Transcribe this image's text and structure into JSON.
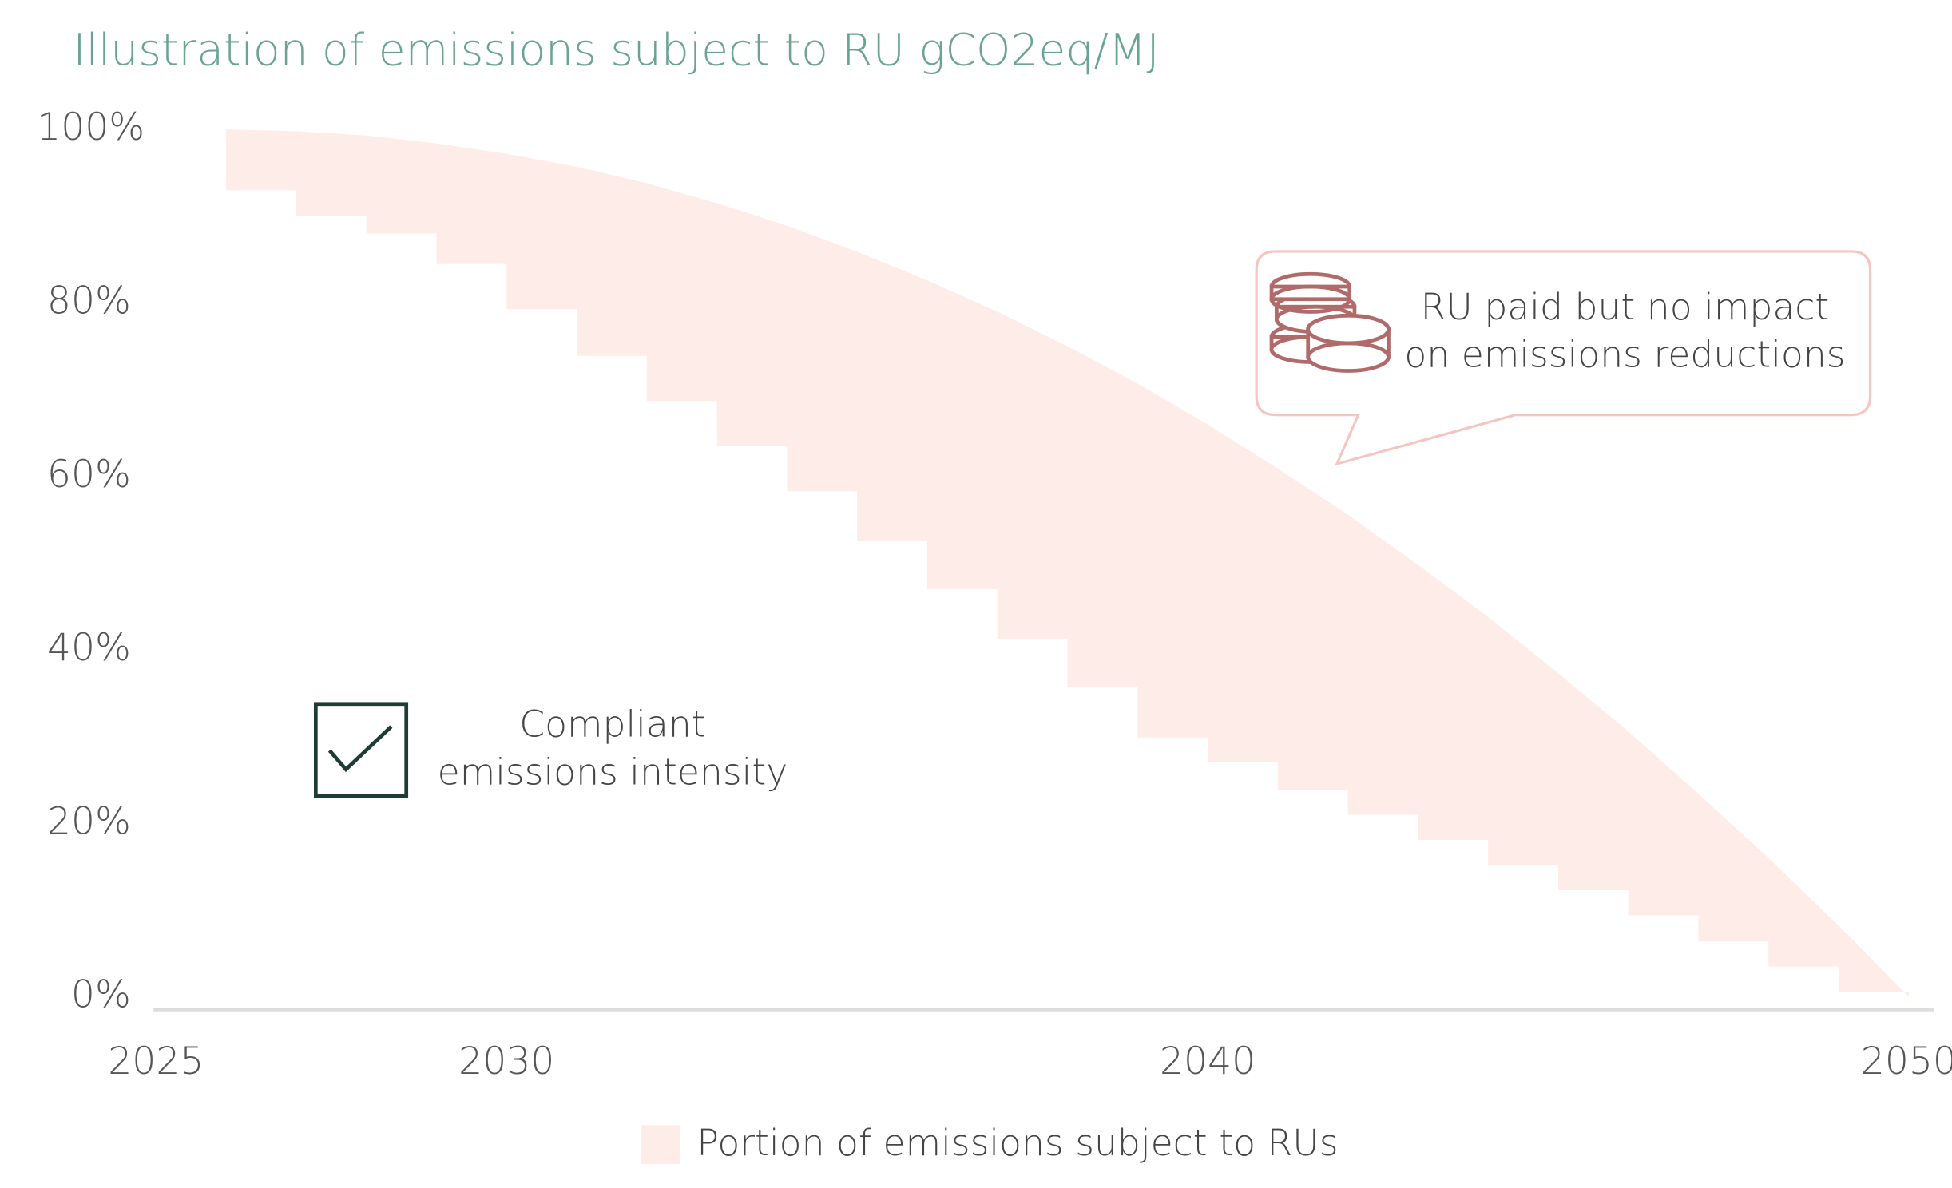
{
  "chart_data": {
    "type": "band",
    "title": "Illustration of emissions subject to RU gCO2eq/MJ",
    "x": [
      2026,
      2027,
      2028,
      2029,
      2030,
      2031,
      2032,
      2033,
      2034,
      2035,
      2036,
      2037,
      2038,
      2039,
      2040,
      2041,
      2042,
      2043,
      2044,
      2045,
      2046,
      2047,
      2048,
      2049,
      2050
    ],
    "series": [
      {
        "name": "Portion of emissions subject to RUs",
        "color": "#fdece8",
        "values": [
          100,
          99.8,
          99.3,
          98.4,
          97.2,
          95.7,
          93.8,
          91.5,
          88.9,
          85.9,
          82.6,
          79.0,
          75.0,
          70.7,
          66.0,
          60.9,
          55.6,
          49.8,
          43.8,
          37.3,
          30.6,
          23.4,
          16.0,
          8.2,
          0
        ],
        "base": [
          93,
          90,
          88,
          84.5,
          79.3,
          73.9,
          68.7,
          63.5,
          58.3,
          52.6,
          47,
          41.3,
          35.7,
          29.9,
          27.1,
          23.9,
          21,
          18.1,
          15.2,
          12.3,
          9.4,
          6.4,
          3.5,
          0.6,
          0
        ]
      }
    ],
    "xlim": [
      2025,
      2050.4
    ],
    "ylim": [
      0,
      100
    ],
    "xticks": [
      2025,
      2030,
      2040,
      2050
    ],
    "yticks": [
      {
        "value": 0,
        "label": "0%"
      },
      {
        "value": 20,
        "label": "20%"
      },
      {
        "value": 40,
        "label": "40%"
      },
      {
        "value": 60,
        "label": "60%"
      },
      {
        "value": 80,
        "label": "80%"
      },
      {
        "value": 100,
        "label": "100%"
      }
    ],
    "annotations": [
      {
        "lines": [
          "RU paid but no impact",
          "on emissions reductions"
        ]
      },
      {
        "lines": [
          "Compliant",
          "emissions intensity"
        ]
      }
    ]
  }
}
